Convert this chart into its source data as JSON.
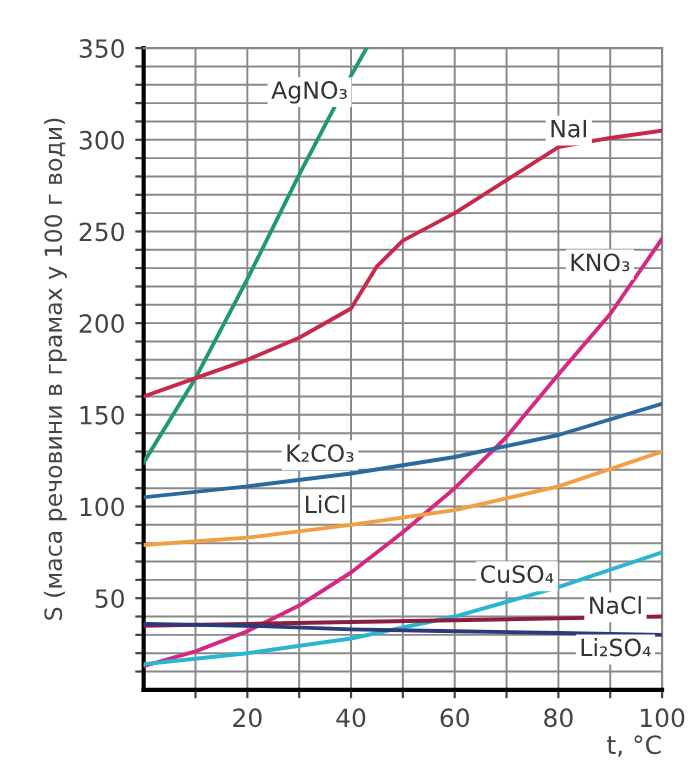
{
  "chart_data": {
    "type": "line",
    "xlabel": "t, °C",
    "ylabel": "S (маса речовини в грамах у 100 г води)",
    "xlim": [
      0,
      100
    ],
    "ylim": [
      0,
      350
    ],
    "xticks": [
      {
        "value": 10,
        "label": null
      },
      20,
      {
        "value": 30,
        "label": null
      },
      40,
      {
        "value": 50,
        "label": null
      },
      60,
      {
        "value": 70,
        "label": null
      },
      80,
      {
        "value": 90,
        "label": null
      },
      100
    ],
    "yticks": [
      {
        "value": 10,
        "label": null
      },
      {
        "value": 20,
        "label": null
      },
      {
        "value": 30,
        "label": null
      },
      {
        "value": 40,
        "label": null
      },
      50,
      {
        "value": 60,
        "label": null
      },
      {
        "value": 70,
        "label": null
      },
      {
        "value": 80,
        "label": null
      },
      {
        "value": 90,
        "label": null
      },
      100,
      {
        "value": 110,
        "label": null
      },
      {
        "value": 120,
        "label": null
      },
      {
        "value": 130,
        "label": null
      },
      {
        "value": 140,
        "label": null
      },
      150,
      {
        "value": 160,
        "label": null
      },
      {
        "value": 170,
        "label": null
      },
      {
        "value": 180,
        "label": null
      },
      {
        "value": 190,
        "label": null
      },
      200,
      {
        "value": 210,
        "label": null
      },
      {
        "value": 220,
        "label": null
      },
      {
        "value": 230,
        "label": null
      },
      {
        "value": 240,
        "label": null
      },
      250,
      {
        "value": 260,
        "label": null
      },
      {
        "value": 270,
        "label": null
      },
      {
        "value": 280,
        "label": null
      },
      {
        "value": 290,
        "label": null
      },
      300,
      {
        "value": 310,
        "label": null
      },
      {
        "value": 320,
        "label": null
      },
      {
        "value": 330,
        "label": null
      },
      {
        "value": 340,
        "label": null
      },
      350
    ],
    "grid": true,
    "marker": "none",
    "line_style": "solid",
    "series": [
      {
        "color": "#1f9a6e",
        "x": [
          0,
          10,
          20,
          30,
          40,
          43
        ],
        "values": [
          124,
          170,
          224,
          281,
          335,
          350
        ]
      },
      {
        "color": "#c8294a",
        "x": [
          0,
          10,
          20,
          30,
          40,
          45,
          50,
          60,
          70,
          80,
          90,
          100
        ],
        "values": [
          160,
          170,
          180,
          192,
          208,
          231,
          245,
          260,
          278,
          296,
          301,
          305
        ]
      },
      {
        "color": "#d6287f",
        "x": [
          0,
          10,
          20,
          30,
          40,
          50,
          60,
          70,
          80,
          90,
          100
        ],
        "values": [
          13,
          21,
          32,
          46,
          64,
          86,
          110,
          138,
          172,
          205,
          246
        ]
      },
      {
        "color": "#2a6a9e",
        "x": [
          0,
          20,
          40,
          60,
          80,
          100
        ],
        "values": [
          105,
          111,
          118,
          127,
          139,
          156
        ]
      },
      {
        "color": "#f0a040",
        "x": [
          0,
          20,
          40,
          60,
          80,
          100
        ],
        "values": [
          79,
          83,
          90,
          98,
          111,
          130
        ]
      },
      {
        "color": "#2ab5d0",
        "x": [
          0,
          20,
          40,
          60,
          80,
          100
        ],
        "values": [
          14,
          20,
          28,
          40,
          56,
          75
        ]
      },
      {
        "color": "#8b1e3f",
        "x": [
          0,
          20,
          40,
          60,
          80,
          100
        ],
        "values": [
          35,
          36,
          37,
          38,
          39,
          40
        ]
      },
      {
        "color": "#2a3a7a",
        "x": [
          0,
          20,
          40,
          60,
          80,
          100
        ],
        "values": [
          36,
          35,
          33,
          32,
          31,
          30
        ]
      }
    ],
    "annotations": [
      {
        "text": "AgNO₃",
        "x": 32,
        "y": 326
      },
      {
        "text": "NaI",
        "x": 82,
        "y": 305
      },
      {
        "text": "KNO₃",
        "x": 88,
        "y": 232
      },
      {
        "text": "K₂CO₃",
        "x": 34,
        "y": 128
      },
      {
        "text": "LiCl",
        "x": 35,
        "y": 100
      },
      {
        "text": "CuSO₄",
        "x": 72,
        "y": 62
      },
      {
        "text": "NaCl",
        "x": 91,
        "y": 45
      },
      {
        "text": "Li₂SO₄",
        "x": 91,
        "y": 22
      }
    ]
  }
}
